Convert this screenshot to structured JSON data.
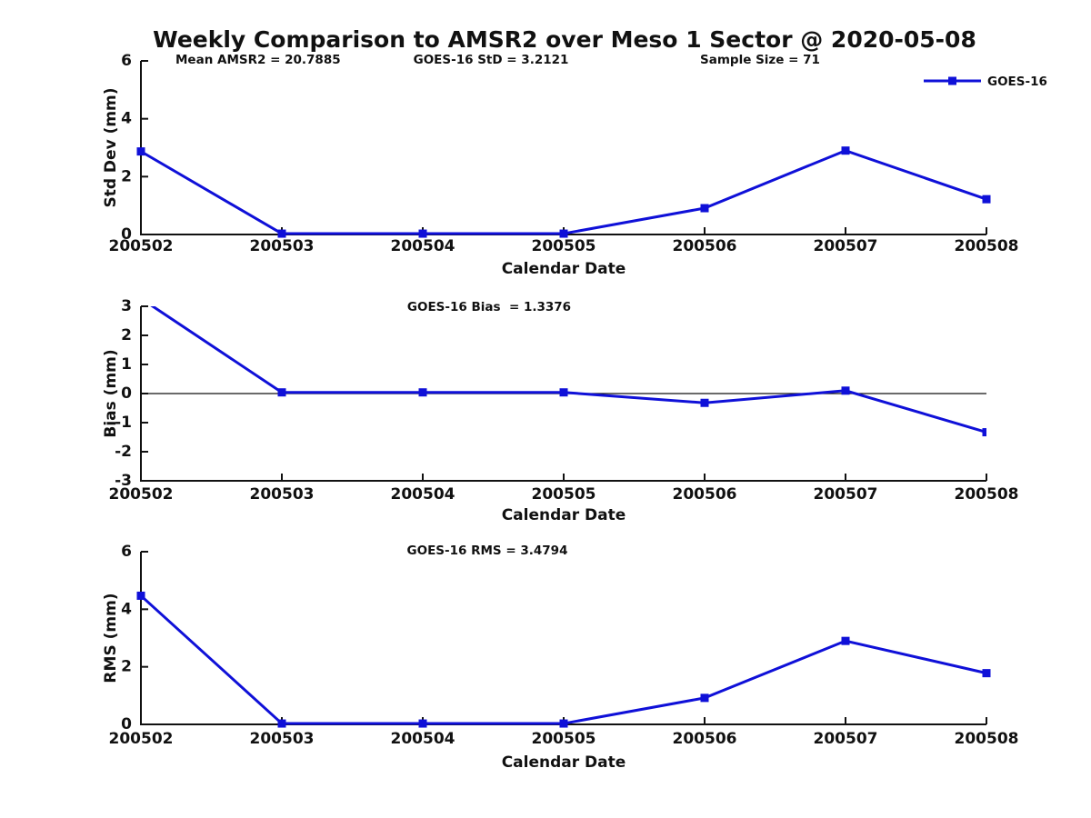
{
  "figure": {
    "title": "Weekly Comparison to AMSR2 over Meso 1 Sector @ 2020-05-08",
    "colors": {
      "line": "#0f10d8",
      "text": "#111111",
      "axis": "#111111",
      "background": "#ffffff"
    }
  },
  "chart_data": [
    {
      "type": "line",
      "name": "std-dev",
      "annotations": [
        {
          "id": "mean-amsr2",
          "text": "Mean AMSR2 = 20.7885"
        },
        {
          "id": "goes16-std",
          "text": "GOES-16 StD = 3.2121"
        },
        {
          "id": "sample-size",
          "text": "Sample Size = 71"
        }
      ],
      "legend": {
        "label": "GOES-16",
        "position": "top-right"
      },
      "ylabel": "Std Dev (mm)",
      "xlabel": "Calendar Date",
      "ylim": [
        0,
        6
      ],
      "yticks": [
        0,
        2,
        4,
        6
      ],
      "grid": false,
      "categories": [
        "200502",
        "200503",
        "200504",
        "200505",
        "200506",
        "200507",
        "200508"
      ],
      "series": [
        {
          "name": "GOES-16",
          "marker": "square",
          "values": [
            2.87,
            0.03,
            0.03,
            0.03,
            0.91,
            2.9,
            1.22
          ]
        }
      ]
    },
    {
      "type": "line",
      "name": "bias",
      "annotations": [
        {
          "id": "goes16-bias",
          "text": "GOES-16 Bias  = 1.3376"
        }
      ],
      "ylabel": "Bias (mm)",
      "xlabel": "Calendar Date",
      "ylim": [
        -3,
        3
      ],
      "yticks": [
        -3,
        -2,
        -1,
        0,
        1,
        2,
        3
      ],
      "zero_line": true,
      "clip_to_axes": true,
      "grid": false,
      "categories": [
        "200502",
        "200503",
        "200504",
        "200505",
        "200506",
        "200507",
        "200508"
      ],
      "series": [
        {
          "name": "GOES-16",
          "marker": "square",
          "values": [
            3.27,
            0.04,
            0.04,
            0.04,
            -0.32,
            0.1,
            -1.33
          ]
        }
      ]
    },
    {
      "type": "line",
      "name": "rms",
      "annotations": [
        {
          "id": "goes16-rms",
          "text": "GOES-16 RMS = 3.4794"
        }
      ],
      "ylabel": "RMS (mm)",
      "xlabel": "Calendar Date",
      "ylim": [
        0,
        6
      ],
      "yticks": [
        0,
        2,
        4,
        6
      ],
      "grid": false,
      "categories": [
        "200502",
        "200503",
        "200504",
        "200505",
        "200506",
        "200507",
        "200508"
      ],
      "series": [
        {
          "name": "GOES-16",
          "marker": "square",
          "values": [
            4.47,
            0.03,
            0.03,
            0.03,
            0.92,
            2.9,
            1.78
          ]
        }
      ]
    }
  ]
}
